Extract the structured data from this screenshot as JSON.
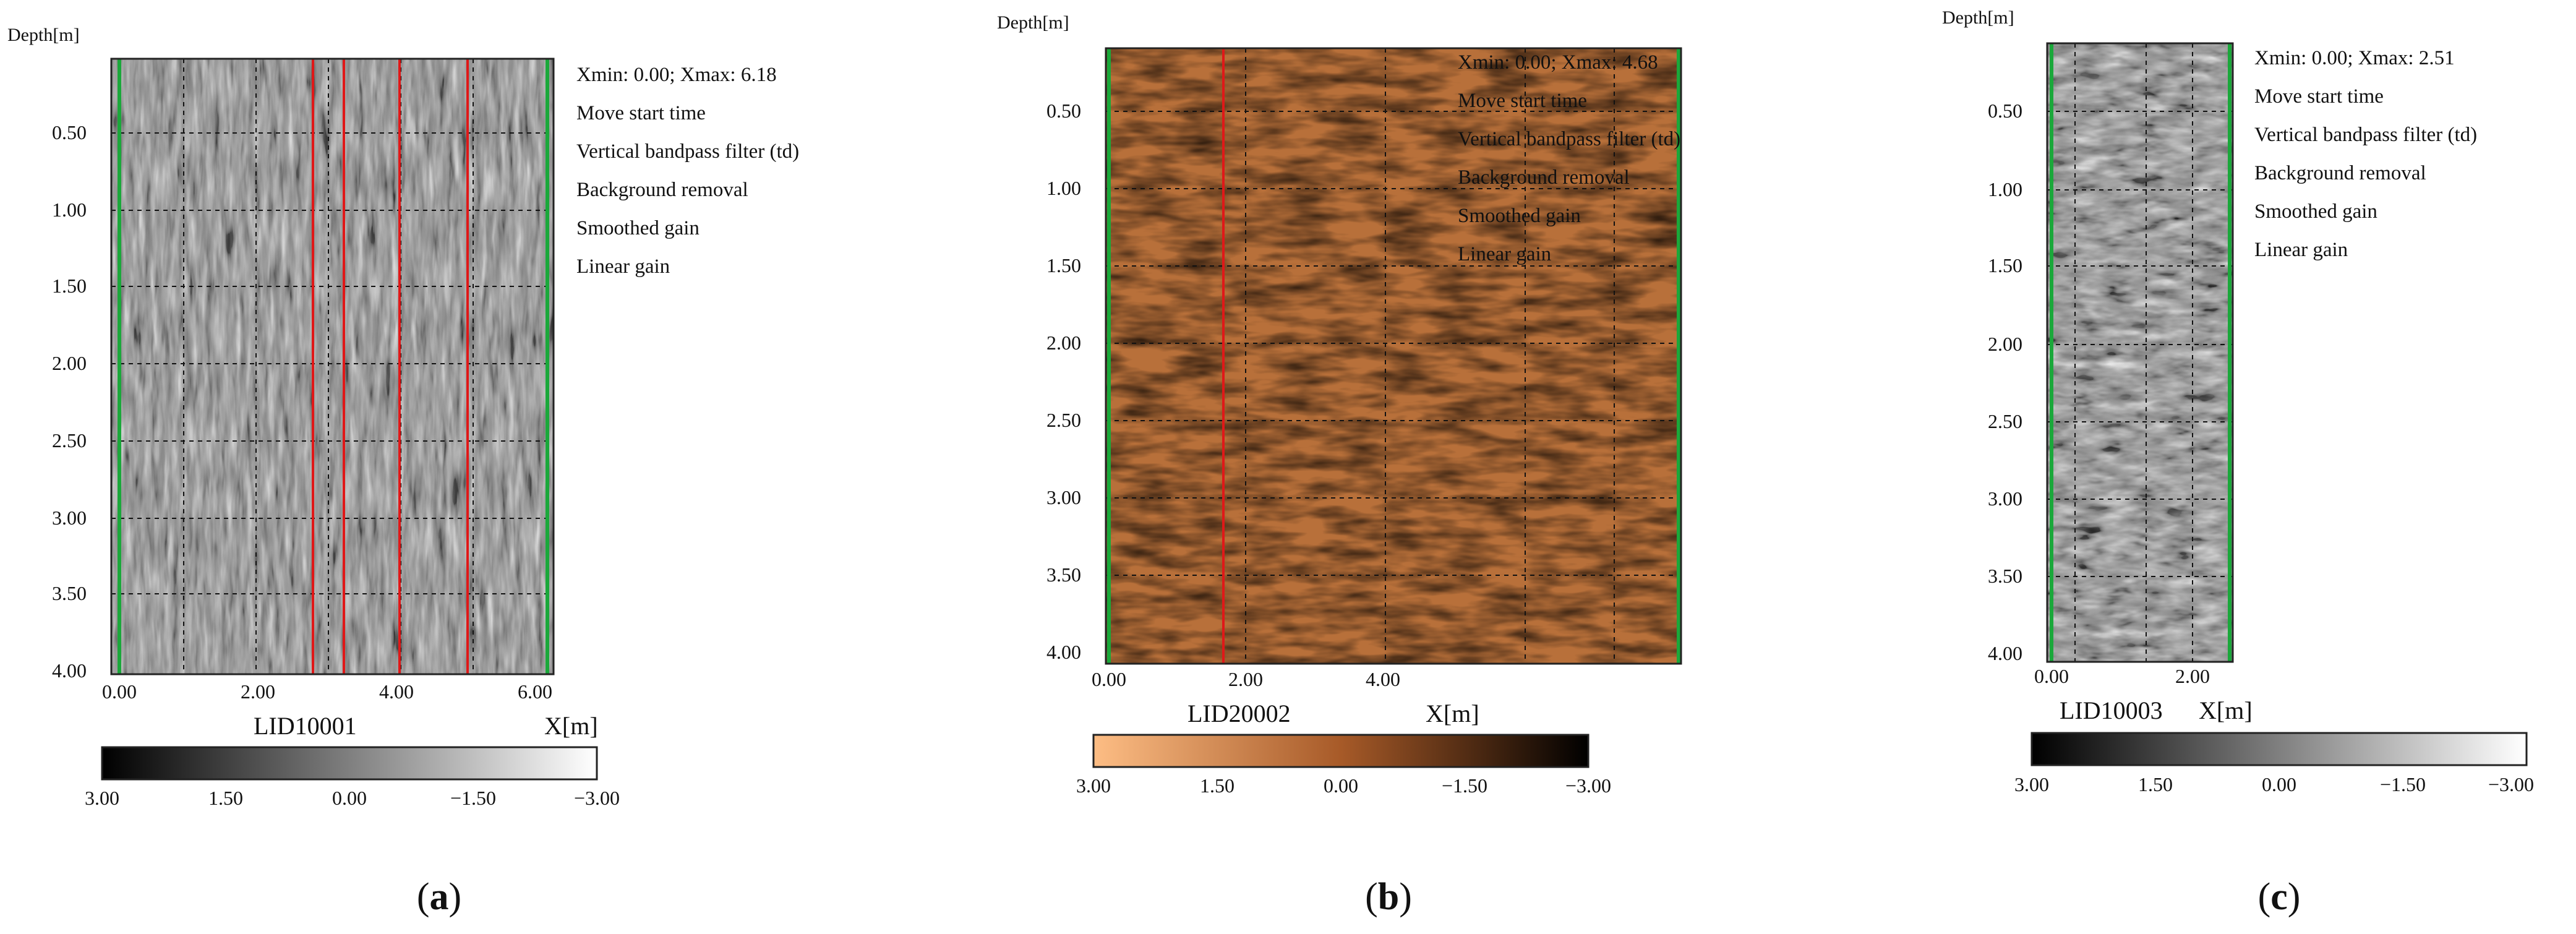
{
  "panels": [
    {
      "id": "a",
      "depth_label": "Depth[m]",
      "y_ticks": [
        "0.50",
        "1.00",
        "1.50",
        "2.00",
        "2.50",
        "3.00",
        "3.50",
        "4.00"
      ],
      "x_ticks": [
        "0.00",
        "2.00",
        "4.00",
        "6.00"
      ],
      "info": [
        "Xmin:  0.00;   Xmax:  6.18",
        "Move start time",
        "Vertical bandpass filter (td)",
        "Background removal",
        "Smoothed gain",
        "Linear gain"
      ],
      "profile_name": "LID10001",
      "x_axis_name": "X[m]",
      "colorbar_ticks": [
        "3.00",
        "1.50",
        "0.00",
        "−1.50",
        "−3.00"
      ],
      "colormap": {
        "start": "#000000",
        "end": "#ffffff"
      },
      "radargram_base": "#8a8a8a",
      "caption_open": "(",
      "caption_letter": "a",
      "caption_close": ")"
    },
    {
      "id": "b",
      "depth_label": "Depth[m]",
      "y_ticks": [
        "0.50",
        "1.00",
        "1.50",
        "2.00",
        "2.50",
        "3.00",
        "3.50",
        "4.00"
      ],
      "x_ticks": [
        "0.00",
        "2.00",
        "4.00"
      ],
      "info": [
        "Xmin:  0.00;   Xmax:  4.68",
        "Move start time",
        "Vertical bandpass filter (td)",
        "Background removal",
        "Smoothed gain",
        "Linear gain"
      ],
      "profile_name": "LID20002",
      "x_axis_name": "X[m]",
      "colorbar_ticks": [
        "3.00",
        "1.50",
        "0.00",
        "−1.50",
        "−3.00"
      ],
      "colormap": {
        "start": "#fdbd84",
        "end": "#000000"
      },
      "radargram_base": "#b8703a",
      "caption_open": "(",
      "caption_letter": "b",
      "caption_close": ")"
    },
    {
      "id": "c",
      "depth_label": "Depth[m]",
      "y_ticks": [
        "0.50",
        "1.00",
        "1.50",
        "2.00",
        "2.50",
        "3.00",
        "3.50",
        "4.00"
      ],
      "x_ticks": [
        "0.00",
        "2.00"
      ],
      "info": [
        "Xmin:  0.00;   Xmax:  2.51",
        "Move start time",
        "Vertical bandpass filter (td)",
        "Background removal",
        "Smoothed gain",
        "Linear gain"
      ],
      "profile_name": "LID10003",
      "x_axis_name": "X[m]",
      "colorbar_ticks": [
        "3.00",
        "1.50",
        "0.00",
        "−1.50",
        "−3.00"
      ],
      "colormap": {
        "start": "#000000",
        "end": "#ffffff"
      },
      "radargram_base": "#8a8a8a",
      "caption_open": "(",
      "caption_letter": "c",
      "caption_close": ")"
    }
  ],
  "marker_colors": {
    "boundary": "#1aa83a",
    "target": "#e01818",
    "grid": "#111111"
  }
}
